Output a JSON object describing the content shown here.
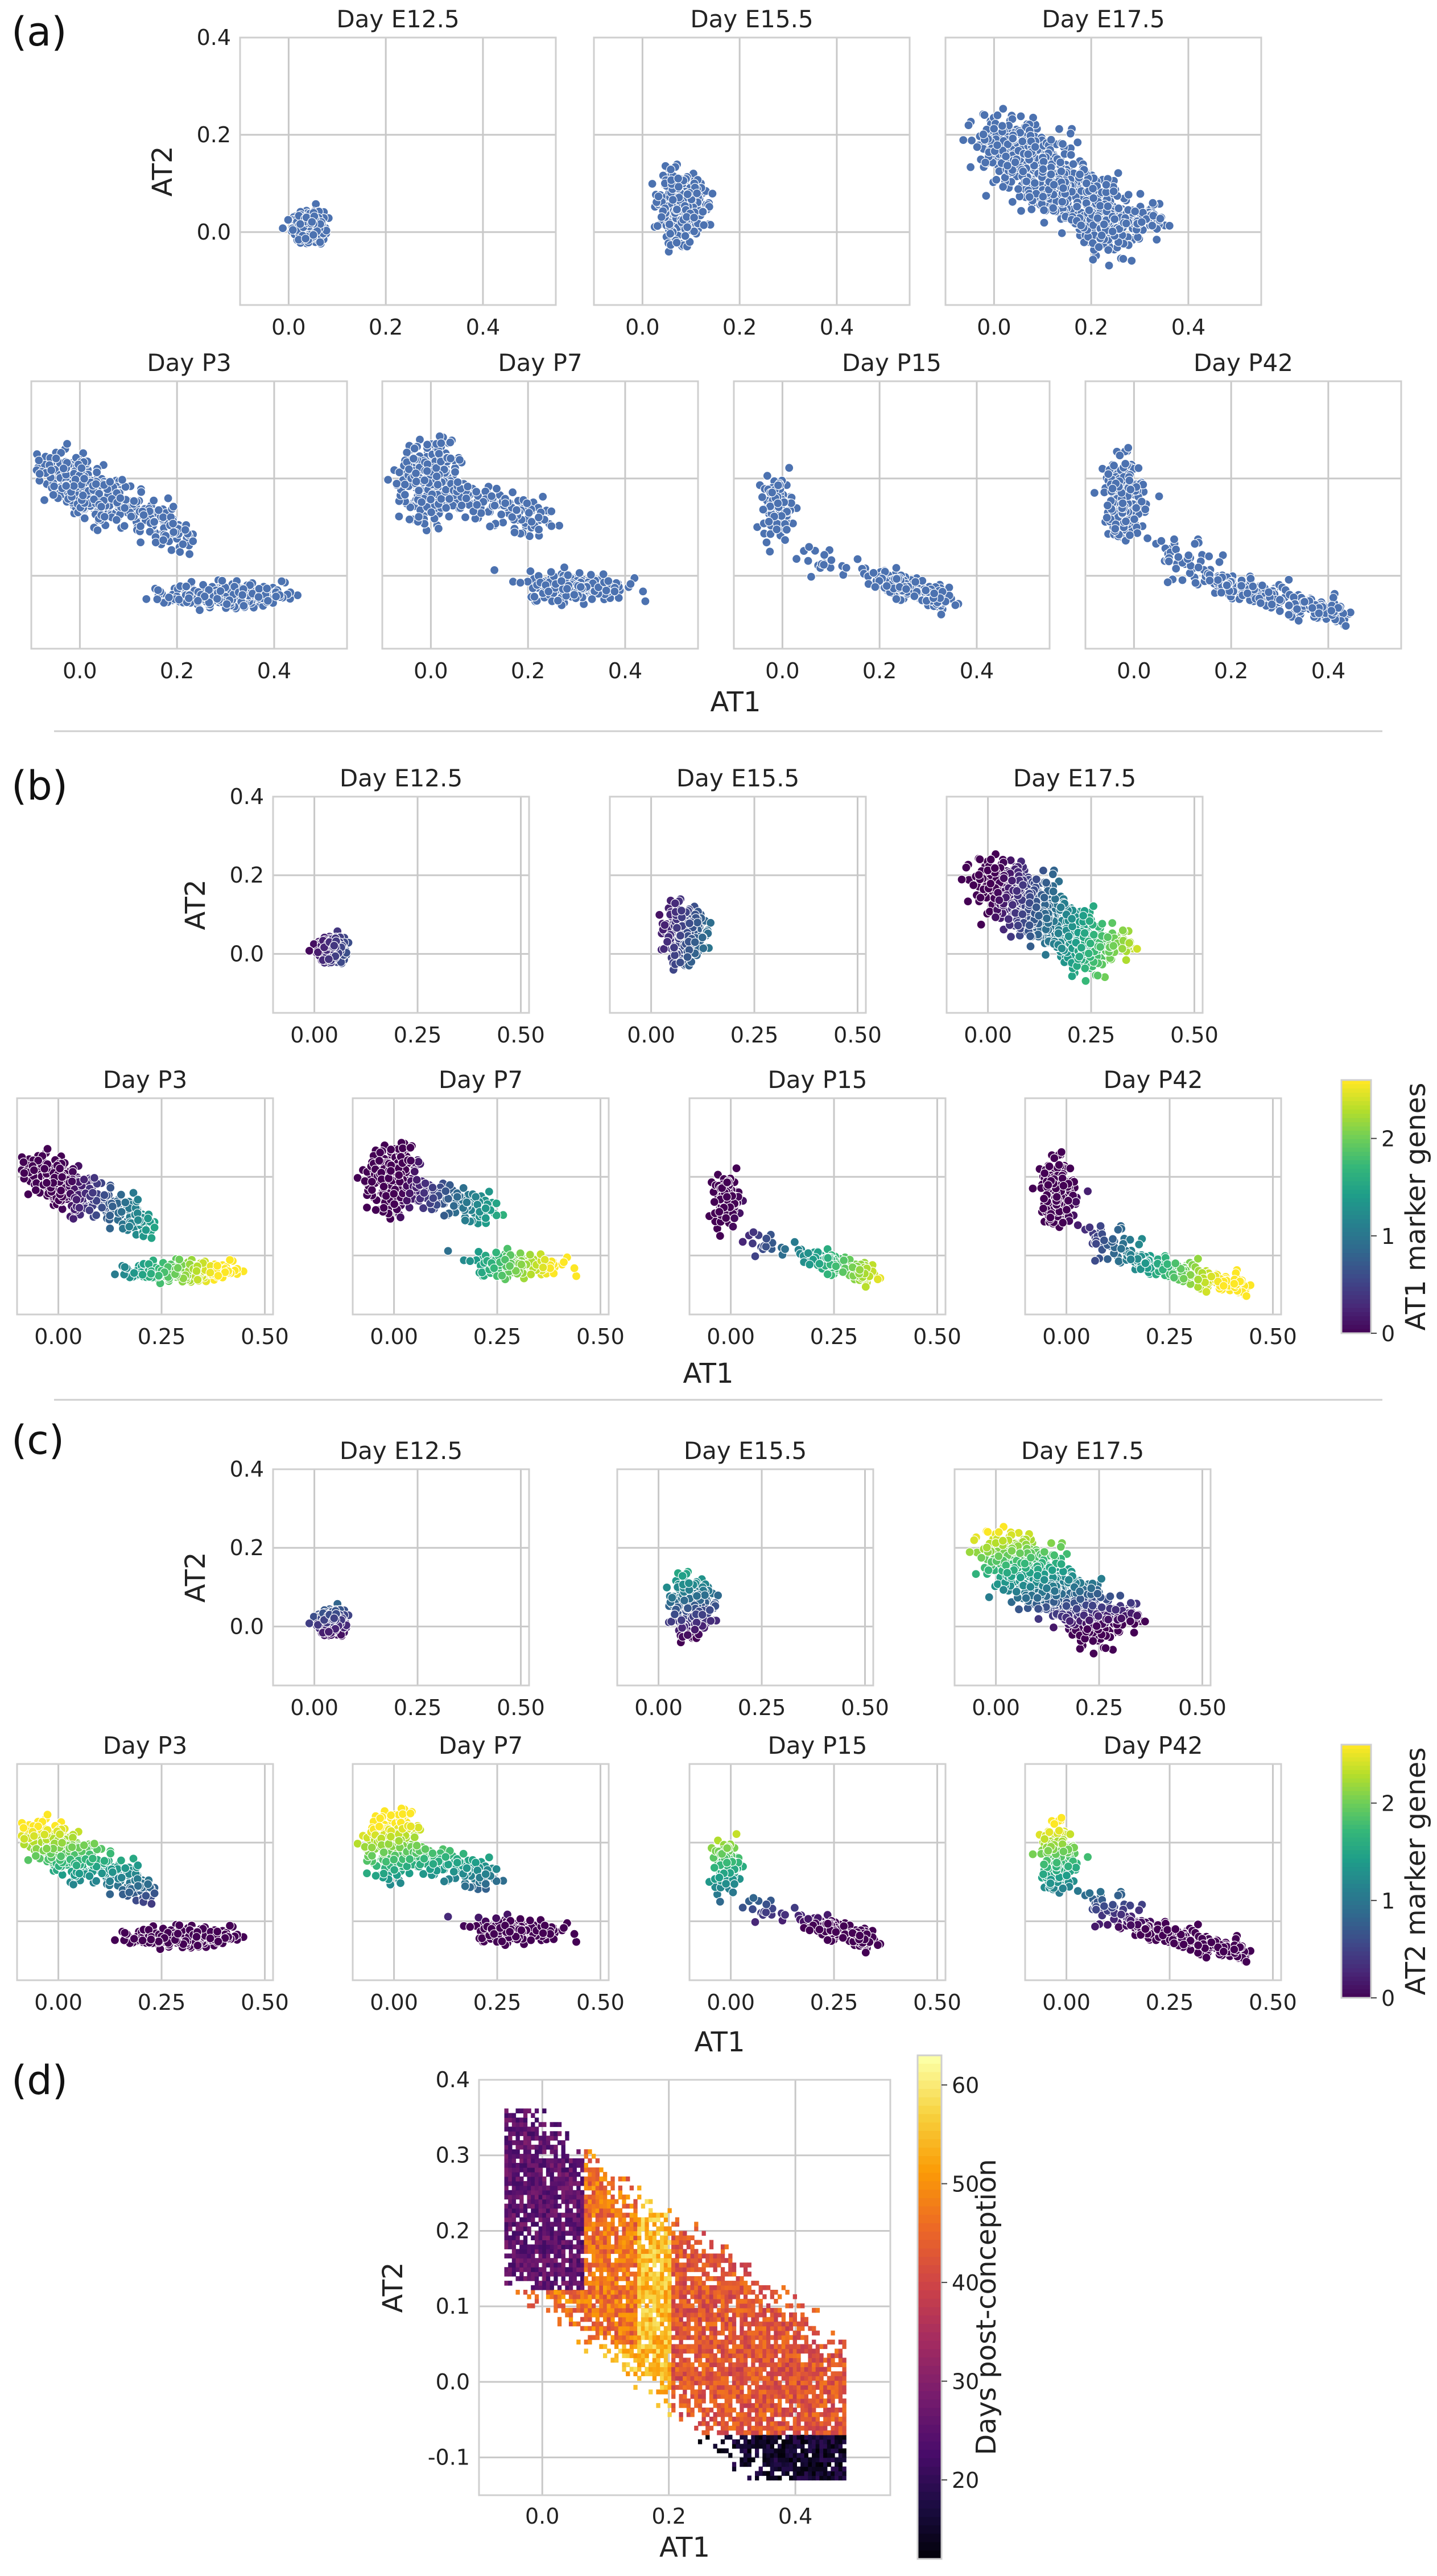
{
  "panel_labels": [
    "(a)",
    "(b)",
    "(c)",
    "(d)"
  ],
  "chart_data": [
    {
      "panel": "(a)",
      "type": "scatter",
      "xlabel": "AT1",
      "ylabel": "AT2",
      "xlim": [
        -0.1,
        0.55
      ],
      "ylim": [
        -0.15,
        0.4
      ],
      "xticks": [
        "0.0",
        "0.2",
        "0.4"
      ],
      "yticks": [
        "0.0",
        "0.2",
        "0.4"
      ],
      "point_color": "#4c72b0",
      "subplots": [
        {
          "title": "Day E12.5"
        },
        {
          "title": "Day E15.5"
        },
        {
          "title": "Day E17.5"
        },
        {
          "title": "Day P3"
        },
        {
          "title": "Day P7"
        },
        {
          "title": "Day P15"
        },
        {
          "title": "Day P42"
        }
      ]
    },
    {
      "panel": "(b)",
      "type": "scatter",
      "xlabel": "AT1",
      "ylabel": "AT2",
      "xlim": [
        -0.1,
        0.52
      ],
      "ylim": [
        -0.15,
        0.4
      ],
      "xticks": [
        "0.00",
        "0.25",
        "0.50"
      ],
      "yticks": [
        "0.0",
        "0.2",
        "0.4"
      ],
      "colorbar_label": "AT1 marker genes",
      "colorbar_ticks": [
        "0",
        "1",
        "2"
      ],
      "colormap": "viridis",
      "subplots": [
        {
          "title": "Day E12.5"
        },
        {
          "title": "Day E15.5"
        },
        {
          "title": "Day E17.5"
        },
        {
          "title": "Day P3"
        },
        {
          "title": "Day P7"
        },
        {
          "title": "Day P15"
        },
        {
          "title": "Day P42"
        }
      ]
    },
    {
      "panel": "(c)",
      "type": "scatter",
      "xlabel": "AT1",
      "ylabel": "AT2",
      "xlim": [
        -0.1,
        0.52
      ],
      "ylim": [
        -0.15,
        0.4
      ],
      "xticks": [
        "0.00",
        "0.25",
        "0.50"
      ],
      "yticks": [
        "0.0",
        "0.2",
        "0.4"
      ],
      "colorbar_label": "AT2 marker genes",
      "colorbar_ticks": [
        "0",
        "1",
        "2"
      ],
      "colormap": "viridis",
      "subplots": [
        {
          "title": "Day E12.5"
        },
        {
          "title": "Day E15.5"
        },
        {
          "title": "Day E17.5"
        },
        {
          "title": "Day P3"
        },
        {
          "title": "Day P7"
        },
        {
          "title": "Day P15"
        },
        {
          "title": "Day P42"
        }
      ]
    },
    {
      "panel": "(d)",
      "type": "heatmap",
      "xlabel": "AT1",
      "ylabel": "AT2",
      "xlim": [
        -0.1,
        0.55
      ],
      "ylim": [
        -0.15,
        0.4
      ],
      "xticks": [
        "0.0",
        "0.2",
        "0.4"
      ],
      "yticks": [
        "-0.1",
        "0.0",
        "0.1",
        "0.2",
        "0.3",
        "0.4"
      ],
      "colorbar_label": "Days post-conception",
      "colorbar_ticks": [
        "20",
        "30",
        "40",
        "50",
        "60"
      ],
      "colorbar_range": [
        12,
        63
      ],
      "colormap": "inferno"
    }
  ]
}
